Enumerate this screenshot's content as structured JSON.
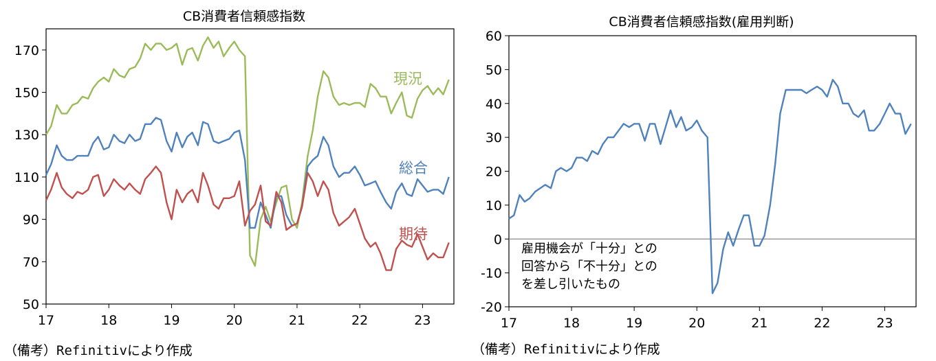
{
  "chart_data": [
    {
      "type": "line",
      "title": "CB消費者信頼感指数",
      "xlabel": "",
      "ylabel": "",
      "xlim": [
        17,
        23.5
      ],
      "ylim": [
        50,
        180
      ],
      "yticks": [
        50,
        70,
        90,
        110,
        130,
        150,
        170
      ],
      "xticks": [
        17,
        18,
        19,
        20,
        21,
        22,
        23
      ],
      "grid": false,
      "legend": "inline labels at right",
      "series": [
        {
          "name": "現況",
          "color": "#9bbb59",
          "x": [
            17.0,
            17.08,
            17.17,
            17.25,
            17.33,
            17.42,
            17.5,
            17.58,
            17.67,
            17.75,
            17.83,
            17.92,
            18.0,
            18.08,
            18.17,
            18.25,
            18.33,
            18.42,
            18.5,
            18.58,
            18.67,
            18.75,
            18.83,
            18.92,
            19.0,
            19.08,
            19.17,
            19.25,
            19.33,
            19.42,
            19.5,
            19.58,
            19.67,
            19.75,
            19.83,
            19.92,
            20.0,
            20.08,
            20.17,
            20.25,
            20.33,
            20.42,
            20.5,
            20.58,
            20.67,
            20.75,
            20.83,
            20.92,
            21.0,
            21.08,
            21.17,
            21.25,
            21.33,
            21.42,
            21.5,
            21.58,
            21.67,
            21.75,
            21.83,
            21.92,
            22.0,
            22.08,
            22.17,
            22.25,
            22.33,
            22.42,
            22.5,
            22.58,
            22.67,
            22.75,
            22.83,
            22.92,
            23.0,
            23.08,
            23.17,
            23.25,
            23.33,
            23.42
          ],
          "values": [
            130,
            134,
            144,
            140,
            140,
            144,
            145,
            148,
            147,
            152,
            155,
            157,
            155,
            161,
            158,
            157,
            161,
            162,
            166,
            173,
            170,
            173,
            173,
            170,
            171,
            173,
            163,
            170,
            171,
            165,
            172,
            176,
            171,
            174,
            167,
            171,
            174,
            170,
            167,
            73,
            68,
            90,
            96,
            89,
            98,
            105,
            106,
            90,
            86,
            98,
            120,
            132,
            148,
            160,
            157,
            148,
            144,
            145,
            144,
            145,
            145,
            143,
            154,
            152,
            148,
            148,
            140,
            145,
            150,
            139,
            138,
            147,
            151,
            153,
            149,
            152,
            149,
            156
          ]
        },
        {
          "name": "総合",
          "color": "#4f81bd",
          "x": [
            17.0,
            17.08,
            17.17,
            17.25,
            17.33,
            17.42,
            17.5,
            17.58,
            17.67,
            17.75,
            17.83,
            17.92,
            18.0,
            18.08,
            18.17,
            18.25,
            18.33,
            18.42,
            18.5,
            18.58,
            18.67,
            18.75,
            18.83,
            18.92,
            19.0,
            19.08,
            19.17,
            19.25,
            19.33,
            19.42,
            19.5,
            19.58,
            19.67,
            19.75,
            19.83,
            19.92,
            20.0,
            20.08,
            20.17,
            20.25,
            20.33,
            20.42,
            20.5,
            20.58,
            20.67,
            20.75,
            20.83,
            20.92,
            21.0,
            21.08,
            21.17,
            21.25,
            21.33,
            21.42,
            21.5,
            21.58,
            21.67,
            21.75,
            21.83,
            21.92,
            22.0,
            22.08,
            22.17,
            22.25,
            22.33,
            22.42,
            22.5,
            22.58,
            22.67,
            22.75,
            22.83,
            22.92,
            23.0,
            23.08,
            23.17,
            23.25,
            23.33,
            23.42
          ],
          "values": [
            111,
            116,
            125,
            120,
            118,
            118,
            120,
            120,
            120,
            126,
            129,
            123,
            124,
            130,
            127,
            126,
            130,
            127,
            128,
            135,
            135,
            138,
            137,
            127,
            122,
            131,
            124,
            129,
            131,
            125,
            136,
            135,
            127,
            126,
            127,
            128,
            131,
            132,
            118,
            86,
            86,
            98,
            92,
            86,
            101,
            101,
            92,
            87,
            88,
            96,
            115,
            118,
            120,
            129,
            125,
            115,
            110,
            112,
            112,
            115,
            111,
            106,
            107,
            108,
            103,
            98,
            95,
            103,
            107,
            102,
            101,
            109,
            106,
            103,
            104,
            104,
            102,
            110
          ]
        },
        {
          "name": "期待",
          "color": "#c0504d",
          "x": [
            17.0,
            17.08,
            17.17,
            17.25,
            17.33,
            17.42,
            17.5,
            17.58,
            17.67,
            17.75,
            17.83,
            17.92,
            18.0,
            18.08,
            18.17,
            18.25,
            18.33,
            18.42,
            18.5,
            18.58,
            18.67,
            18.75,
            18.83,
            18.92,
            19.0,
            19.08,
            19.17,
            19.25,
            19.33,
            19.42,
            19.5,
            19.58,
            19.67,
            19.75,
            19.83,
            19.92,
            20.0,
            20.08,
            20.17,
            20.25,
            20.33,
            20.42,
            20.5,
            20.58,
            20.67,
            20.75,
            20.83,
            20.92,
            21.0,
            21.08,
            21.17,
            21.25,
            21.33,
            21.42,
            21.5,
            21.58,
            21.67,
            21.75,
            21.83,
            21.92,
            22.0,
            22.08,
            22.17,
            22.25,
            22.33,
            22.42,
            22.5,
            22.58,
            22.67,
            22.75,
            22.83,
            22.92,
            23.0,
            23.08,
            23.17,
            23.25,
            23.33,
            23.42
          ],
          "values": [
            99,
            104,
            112,
            105,
            102,
            100,
            103,
            102,
            104,
            110,
            111,
            101,
            104,
            109,
            106,
            104,
            107,
            104,
            102,
            109,
            112,
            115,
            112,
            98,
            90,
            104,
            98,
            102,
            104,
            98,
            112,
            106,
            97,
            95,
            100,
            100,
            101,
            108,
            87,
            94,
            97,
            106,
            89,
            87,
            103,
            98,
            85,
            87,
            88,
            96,
            112,
            108,
            101,
            108,
            104,
            93,
            87,
            89,
            91,
            95,
            88,
            81,
            77,
            79,
            74,
            66,
            66,
            76,
            80,
            78,
            77,
            83,
            77,
            71,
            74,
            72,
            72,
            79
          ]
        }
      ]
    },
    {
      "type": "line",
      "title": "CB消費者信頼感指数(雇用判断)",
      "xlabel": "",
      "ylabel": "",
      "xlim": [
        17,
        23.5
      ],
      "ylim": [
        -20,
        60
      ],
      "yticks": [
        -20,
        -10,
        0,
        10,
        20,
        30,
        40,
        50,
        60
      ],
      "xticks": [
        17,
        18,
        19,
        20,
        21,
        22,
        23
      ],
      "grid": false,
      "series": [
        {
          "color": "#4f81bd",
          "x": [
            17.0,
            17.08,
            17.17,
            17.25,
            17.33,
            17.42,
            17.5,
            17.58,
            17.67,
            17.75,
            17.83,
            17.92,
            18.0,
            18.08,
            18.17,
            18.25,
            18.33,
            18.42,
            18.5,
            18.58,
            18.67,
            18.75,
            18.83,
            18.92,
            19.0,
            19.08,
            19.17,
            19.25,
            19.33,
            19.42,
            19.5,
            19.58,
            19.67,
            19.75,
            19.83,
            19.92,
            20.0,
            20.08,
            20.17,
            20.25,
            20.33,
            20.42,
            20.5,
            20.58,
            20.67,
            20.75,
            20.83,
            20.92,
            21.0,
            21.08,
            21.17,
            21.25,
            21.33,
            21.42,
            21.5,
            21.58,
            21.67,
            21.75,
            21.83,
            21.92,
            22.0,
            22.08,
            22.17,
            22.25,
            22.33,
            22.42,
            22.5,
            22.58,
            22.67,
            22.75,
            22.83,
            22.92,
            23.0,
            23.08,
            23.17,
            23.25,
            23.33,
            23.42
          ],
          "values": [
            6,
            7,
            13,
            11,
            12,
            14,
            15,
            16,
            15,
            20,
            21,
            20,
            21,
            24,
            24,
            23,
            26,
            25,
            28,
            30,
            30,
            32,
            34,
            33,
            34,
            34,
            29,
            34,
            34,
            28,
            33,
            38,
            33,
            36,
            32,
            33,
            35,
            32,
            30,
            -16,
            -13,
            -3,
            2,
            -2,
            3,
            7,
            7,
            -2,
            -2,
            1,
            10,
            22,
            37,
            44,
            44,
            44,
            44,
            43,
            44,
            45,
            44,
            42,
            47,
            45,
            40,
            40,
            37,
            36,
            38,
            32,
            32,
            34,
            37,
            40,
            37,
            37,
            31,
            34
          ]
        }
      ],
      "annotation": [
        "雇用機会が「十分」との",
        "回答から「不十分」との",
        "を差し引いたもの"
      ]
    }
  ],
  "notes": {
    "left": "（備考）Refinitivにより作成",
    "right": "（備考）Refinitivにより作成"
  }
}
